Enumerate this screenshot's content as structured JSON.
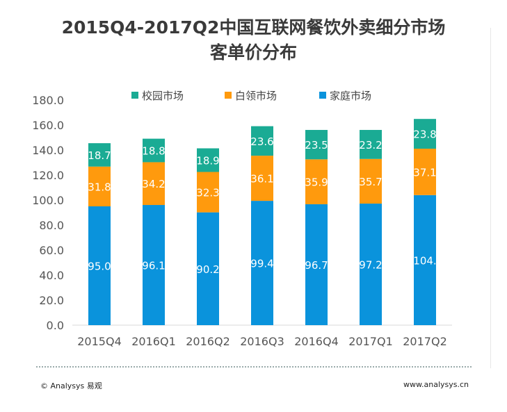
{
  "title_line1": "2015Q4-2017Q2中国互联网餐饮外卖细分市场",
  "title_line2": "客单价分布",
  "footer": {
    "copyright": "© Analysys 易观",
    "url": "www.analysys.cn"
  },
  "chart_data": {
    "type": "bar",
    "stacked": true,
    "categories": [
      "2015Q4",
      "2016Q1",
      "2016Q2",
      "2016Q3",
      "2016Q4",
      "2017Q1",
      "2017Q2"
    ],
    "series": [
      {
        "name": "家庭市场",
        "color": "#0a93dc",
        "values": [
          95.0,
          96.1,
          90.2,
          99.4,
          96.7,
          97.2,
          104.0
        ],
        "labels": [
          "95.0",
          "96.1",
          "90.2",
          "99.4",
          "96.7",
          "97.2",
          "104."
        ]
      },
      {
        "name": "白领市场",
        "color": "#ff9a0d",
        "values": [
          31.8,
          34.2,
          32.3,
          36.1,
          35.9,
          35.7,
          37.1
        ],
        "labels": [
          "31.8",
          "34.2",
          "32.3",
          "36.1",
          "35.9",
          "35.7",
          "37.1"
        ]
      },
      {
        "name": "校园市场",
        "color": "#1aab94",
        "values": [
          18.7,
          18.8,
          18.9,
          23.6,
          23.5,
          23.2,
          23.8
        ],
        "labels": [
          "18.7",
          "18.8",
          "18.9",
          "23.6",
          "23.5",
          "23.2",
          "23.8"
        ]
      }
    ],
    "legend_order": [
      "校园市场",
      "白领市场",
      "家庭市场"
    ],
    "legend_position": "top",
    "ylim": [
      0,
      180
    ],
    "yticks": [
      "0.0",
      "20.0",
      "40.0",
      "60.0",
      "80.0",
      "100.0",
      "120.0",
      "140.0",
      "160.0",
      "180.0"
    ],
    "grid": false
  }
}
